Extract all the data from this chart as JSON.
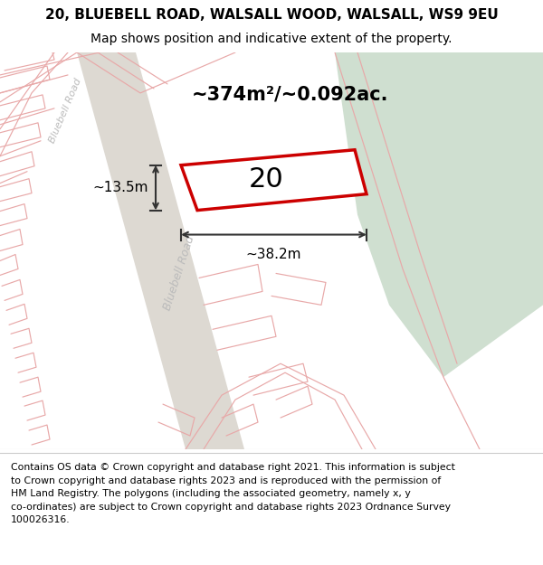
{
  "title": "20, BLUEBELL ROAD, WALSALL WOOD, WALSALL, WS9 9EU",
  "subtitle": "Map shows position and indicative extent of the property.",
  "footer_text": "Contains OS data © Crown copyright and database right 2021. This information is subject\nto Crown copyright and database rights 2023 and is reproduced with the permission of\nHM Land Registry. The polygons (including the associated geometry, namely x, y\nco-ordinates) are subject to Crown copyright and database rights 2023 Ordnance Survey\n100026316.",
  "bg_color": "#eeebe5",
  "green_area_color": "#cfdfd0",
  "road_strip_color": "#ddd9d2",
  "plot_outline_color": "#cc0000",
  "dim_color": "#333333",
  "pink": "#e8a8a8",
  "area_text": "~374m²/~0.092ac.",
  "number_text": "20",
  "width_dim": "~38.2m",
  "height_dim": "~13.5m",
  "road_label": "Bluebell Road",
  "title_fontsize": 11,
  "subtitle_fontsize": 10,
  "footer_fontsize": 7.8
}
